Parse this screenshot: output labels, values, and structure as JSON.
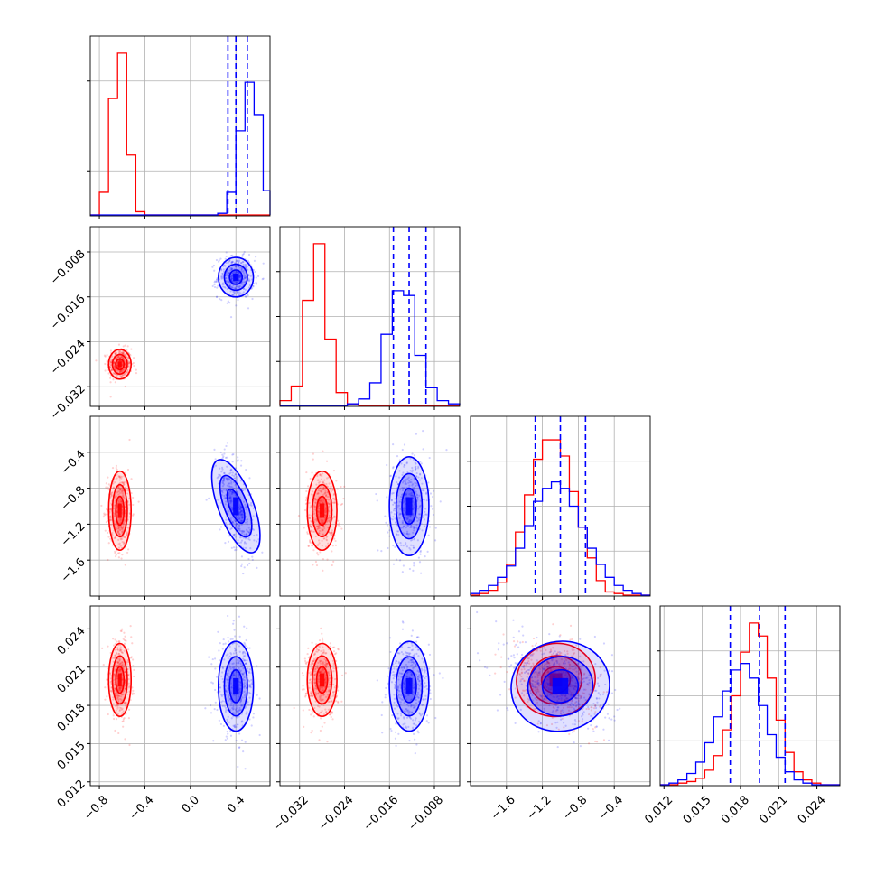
{
  "chart_data": {
    "type": "corner",
    "grid": true,
    "series": [
      {
        "color": "#ff0000",
        "means": [
          -0.62,
          -0.028,
          -1.05,
          0.02
        ],
        "sds": [
          0.045,
          0.0012,
          0.2,
          0.0013
        ]
      },
      {
        "color": "#0000ff",
        "means": [
          0.4,
          -0.0125,
          -1.0,
          0.0195
        ],
        "sds": [
          0.07,
          0.0016,
          0.25,
          0.0016
        ]
      }
    ],
    "params": [
      {
        "range": [
          -0.88,
          0.7
        ],
        "ticks": [
          -0.8,
          -0.4,
          0.0,
          0.4
        ],
        "tick_labels": [
          "−0.8",
          "−0.4",
          "0.0",
          "0.4"
        ]
      },
      {
        "range": [
          -0.0355,
          -0.0035
        ],
        "ticks": [
          -0.032,
          -0.024,
          -0.016,
          -0.008
        ],
        "tick_labels": [
          "−0.032",
          "−0.024",
          "−0.016",
          "−0.008"
        ]
      },
      {
        "range": [
          -2.0,
          -0.0
        ],
        "ticks": [
          -1.6,
          -1.2,
          -0.8,
          -0.4
        ],
        "tick_labels": [
          "−1.6",
          "−1.2",
          "−0.8",
          "−0.4"
        ]
      },
      {
        "range": [
          0.0117,
          0.0258
        ],
        "ticks": [
          0.012,
          0.015,
          0.018,
          0.021,
          0.024
        ],
        "tick_labels": [
          "0.012",
          "0.015",
          "0.018",
          "0.021",
          "0.024"
        ]
      }
    ],
    "quantiles": [
      [
        0.33,
        0.4,
        0.5
      ],
      [
        -0.0153,
        -0.0125,
        -0.0095
      ],
      [
        -1.28,
        -1.0,
        -0.72
      ],
      [
        0.0172,
        0.0195,
        0.0215
      ]
    ],
    "histograms": [
      {
        "edges": [
          -0.88,
          -0.8,
          -0.72,
          -0.64,
          -0.56,
          -0.48,
          -0.4,
          -0.32,
          -0.24,
          -0.16,
          -0.08,
          0.0,
          0.08,
          0.16,
          0.24,
          0.32,
          0.4,
          0.48,
          0.56,
          0.64,
          0.7
        ],
        "red": [
          0.0,
          0.14,
          0.72,
          1.0,
          0.37,
          0.02,
          0.0,
          0,
          0,
          0,
          0,
          0,
          0,
          0,
          0,
          0,
          0,
          0,
          0,
          0
        ],
        "blue": [
          0,
          0,
          0,
          0,
          0,
          0,
          0,
          0,
          0,
          0,
          0,
          0,
          0,
          0,
          0.01,
          0.14,
          0.52,
          0.82,
          0.62,
          0.15
        ]
      },
      {
        "edges": [
          -0.0355,
          -0.0335,
          -0.0315,
          -0.0295,
          -0.0275,
          -0.0255,
          -0.0235,
          -0.0215,
          -0.0195,
          -0.0175,
          -0.0155,
          -0.0135,
          -0.0115,
          -0.0095,
          -0.0075,
          -0.0055,
          -0.0035
        ],
        "red": [
          0.03,
          0.12,
          0.65,
          1.0,
          0.41,
          0.08,
          0.01,
          0,
          0,
          0,
          0,
          0,
          0,
          0,
          0,
          0
        ],
        "blue": [
          0,
          0,
          0,
          0,
          0,
          0,
          0.01,
          0.04,
          0.14,
          0.44,
          0.71,
          0.68,
          0.31,
          0.11,
          0.03,
          0.01
        ]
      },
      {
        "edges": [
          -2.0,
          -1.9,
          -1.8,
          -1.7,
          -1.6,
          -1.5,
          -1.4,
          -1.3,
          -1.2,
          -1.1,
          -1.0,
          -0.9,
          -0.8,
          -0.7,
          -0.6,
          -0.5,
          -0.4,
          -0.3,
          -0.2,
          -0.1,
          0.0
        ],
        "red": [
          0.0,
          0.01,
          0.03,
          0.08,
          0.19,
          0.39,
          0.62,
          0.84,
          0.96,
          0.96,
          0.86,
          0.64,
          0.42,
          0.23,
          0.09,
          0.02,
          0.01,
          0.0,
          0.0,
          0.0
        ],
        "blue": [
          0.01,
          0.03,
          0.06,
          0.11,
          0.18,
          0.29,
          0.43,
          0.58,
          0.66,
          0.7,
          0.66,
          0.55,
          0.42,
          0.29,
          0.19,
          0.11,
          0.06,
          0.03,
          0.01,
          0.0
        ]
      },
      {
        "edges": [
          0.0117,
          0.0124,
          0.0131,
          0.0138,
          0.0145,
          0.0152,
          0.0159,
          0.0166,
          0.0173,
          0.018,
          0.0187,
          0.0194,
          0.0201,
          0.0208,
          0.0215,
          0.0222,
          0.0229,
          0.0236,
          0.0243,
          0.025,
          0.0258
        ],
        "red": [
          0,
          0.0,
          0.01,
          0.02,
          0.04,
          0.09,
          0.18,
          0.34,
          0.55,
          0.82,
          1.0,
          0.92,
          0.66,
          0.4,
          0.2,
          0.08,
          0.03,
          0.01,
          0.0,
          0
        ],
        "blue": [
          0,
          0.01,
          0.03,
          0.07,
          0.14,
          0.26,
          0.42,
          0.58,
          0.71,
          0.75,
          0.66,
          0.49,
          0.31,
          0.17,
          0.08,
          0.03,
          0.01,
          0,
          0,
          0
        ]
      }
    ]
  }
}
